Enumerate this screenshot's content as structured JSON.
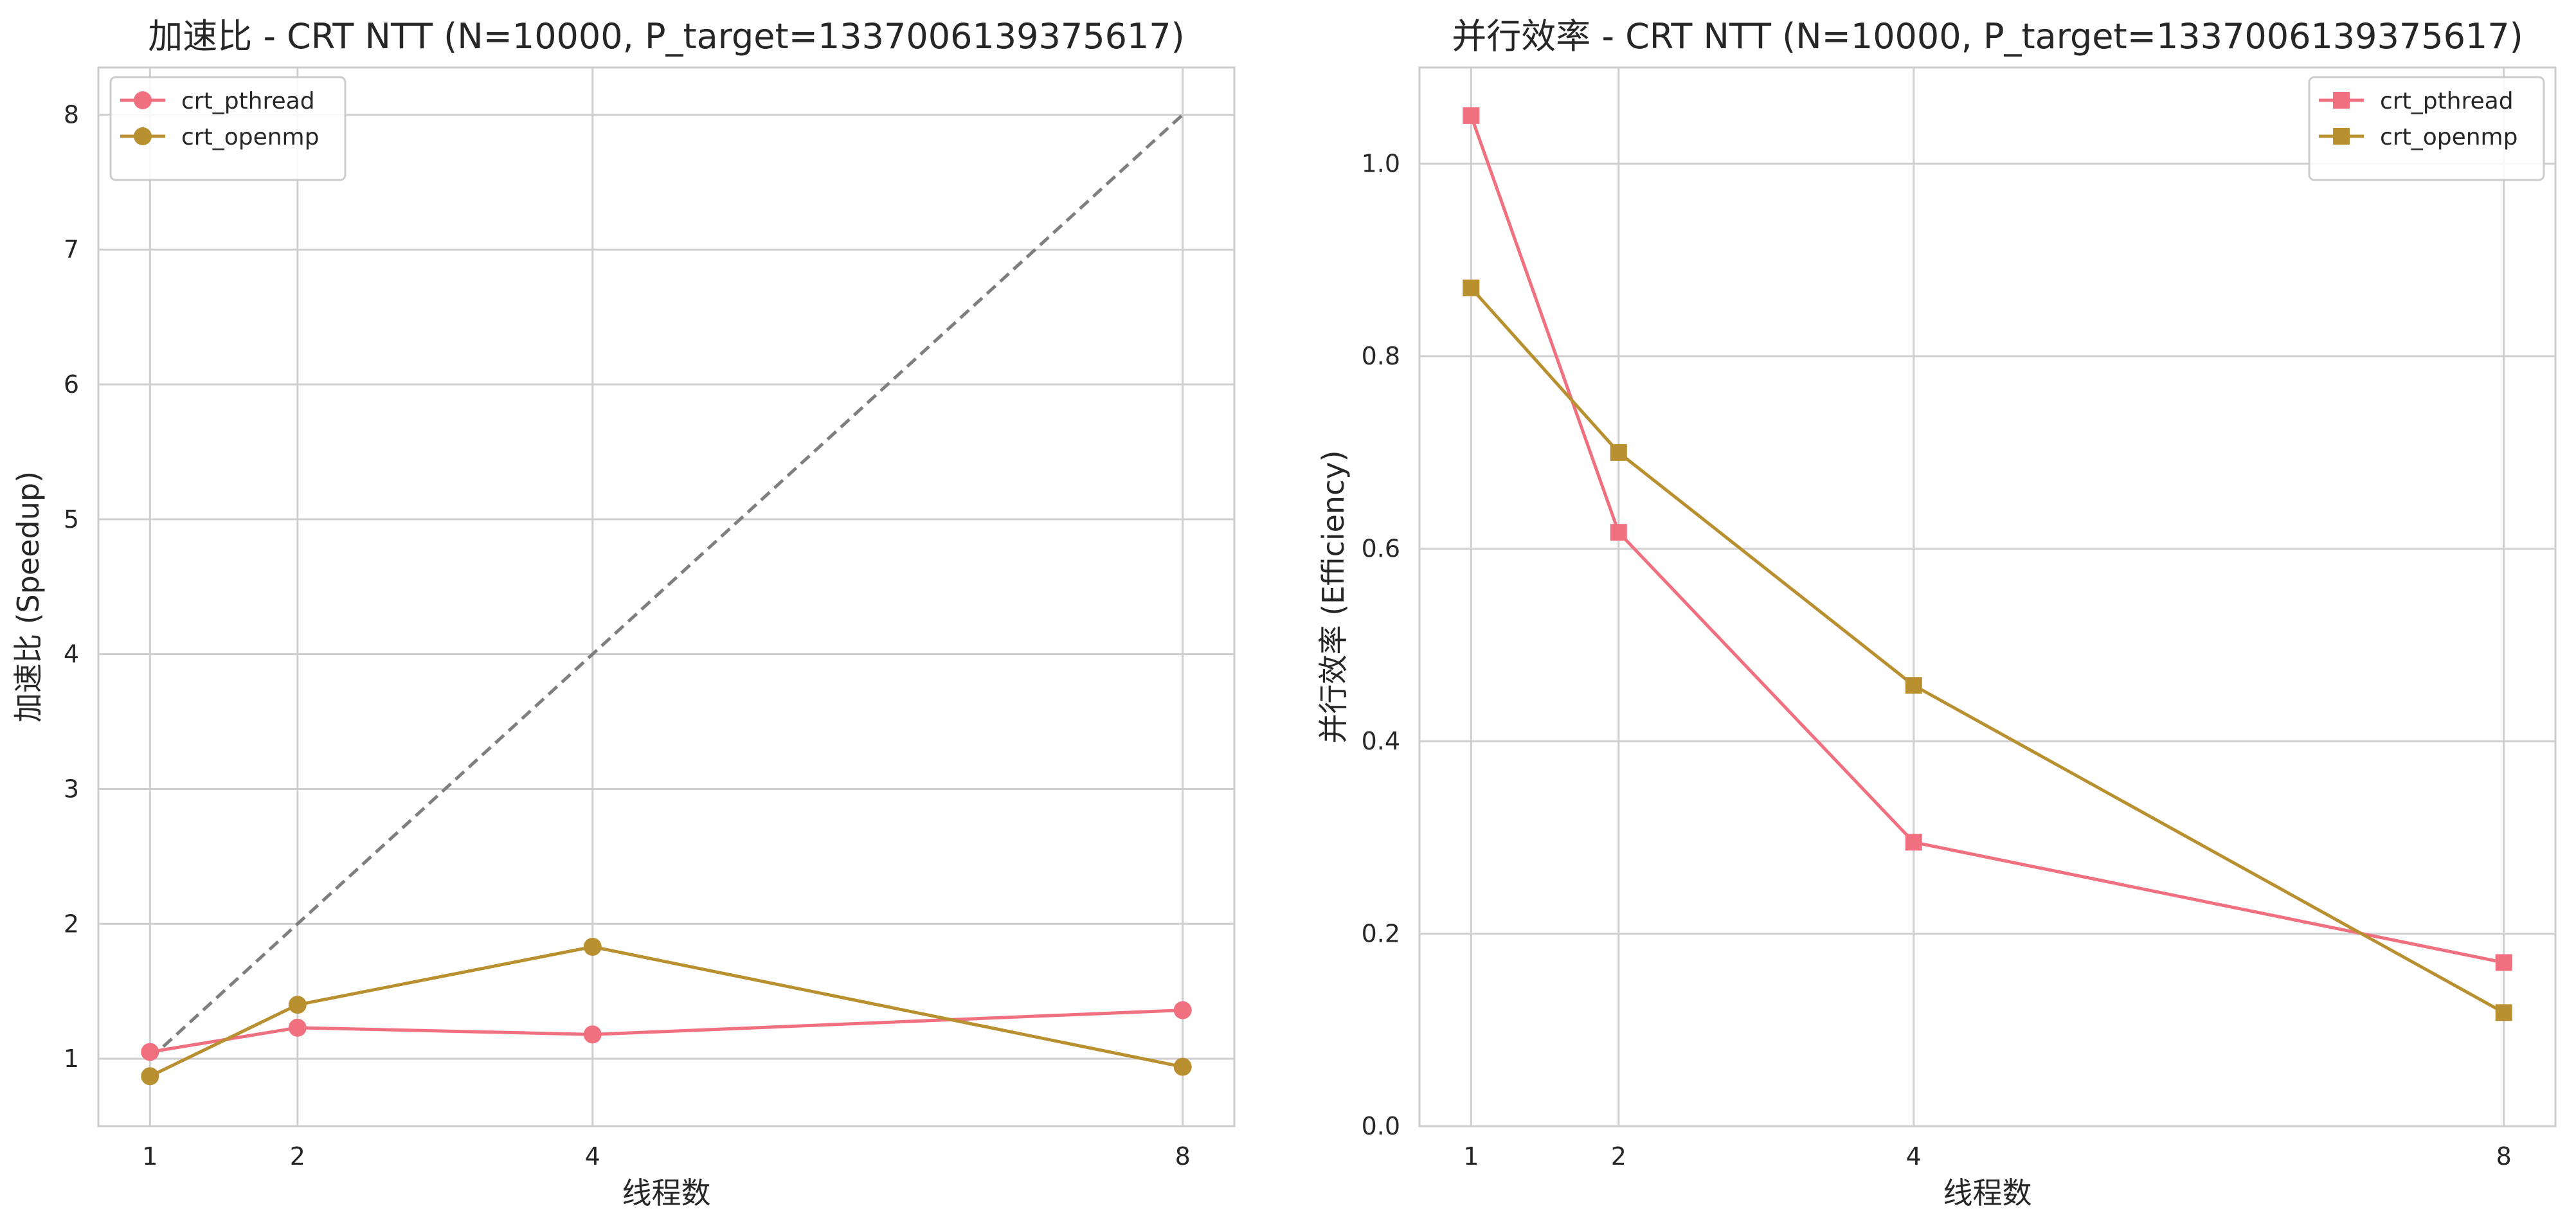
{
  "chart_data": [
    {
      "type": "line",
      "title": "加速比 - CRT NTT (N=10000, P_target=1337006139375617)",
      "xlabel": "线程数",
      "ylabel": "加速比 (Speedup)",
      "xticks": [
        1,
        2,
        4,
        8
      ],
      "yticks": [
        1,
        2,
        3,
        4,
        5,
        6,
        7,
        8
      ],
      "xlim": [
        0.65,
        8.35
      ],
      "ylim": [
        0.5,
        8.35
      ],
      "grid": true,
      "legend_position": "top-left",
      "marker": "circle",
      "series": [
        {
          "name": "crt_pthread",
          "color": "#f07080",
          "x": [
            1,
            2,
            4,
            8
          ],
          "values": [
            1.05,
            1.23,
            1.18,
            1.36
          ]
        },
        {
          "name": "crt_openmp",
          "color": "#b89030",
          "x": [
            1,
            2,
            4,
            8
          ],
          "values": [
            0.87,
            1.4,
            1.83,
            0.94
          ]
        }
      ],
      "reference_line": {
        "style": "dashed",
        "color": "#7f7f7f",
        "x": [
          1,
          8
        ],
        "values": [
          1,
          8
        ]
      }
    },
    {
      "type": "line",
      "title": "并行效率 - CRT NTT (N=10000, P_target=1337006139375617)",
      "xlabel": "线程数",
      "ylabel": "并行效率 (Efficiency)",
      "xticks": [
        1,
        2,
        4,
        8
      ],
      "yticks": [
        0.0,
        0.2,
        0.4,
        0.6,
        0.8,
        1.0
      ],
      "xlim": [
        0.65,
        8.35
      ],
      "ylim": [
        0.0,
        1.1
      ],
      "grid": true,
      "legend_position": "top-right",
      "marker": "square",
      "series": [
        {
          "name": "crt_pthread",
          "color": "#f07080",
          "x": [
            1,
            2,
            4,
            8
          ],
          "values": [
            1.05,
            0.617,
            0.295,
            0.17
          ]
        },
        {
          "name": "crt_openmp",
          "color": "#b89030",
          "x": [
            1,
            2,
            4,
            8
          ],
          "values": [
            0.871,
            0.7,
            0.458,
            0.118
          ]
        }
      ]
    }
  ]
}
